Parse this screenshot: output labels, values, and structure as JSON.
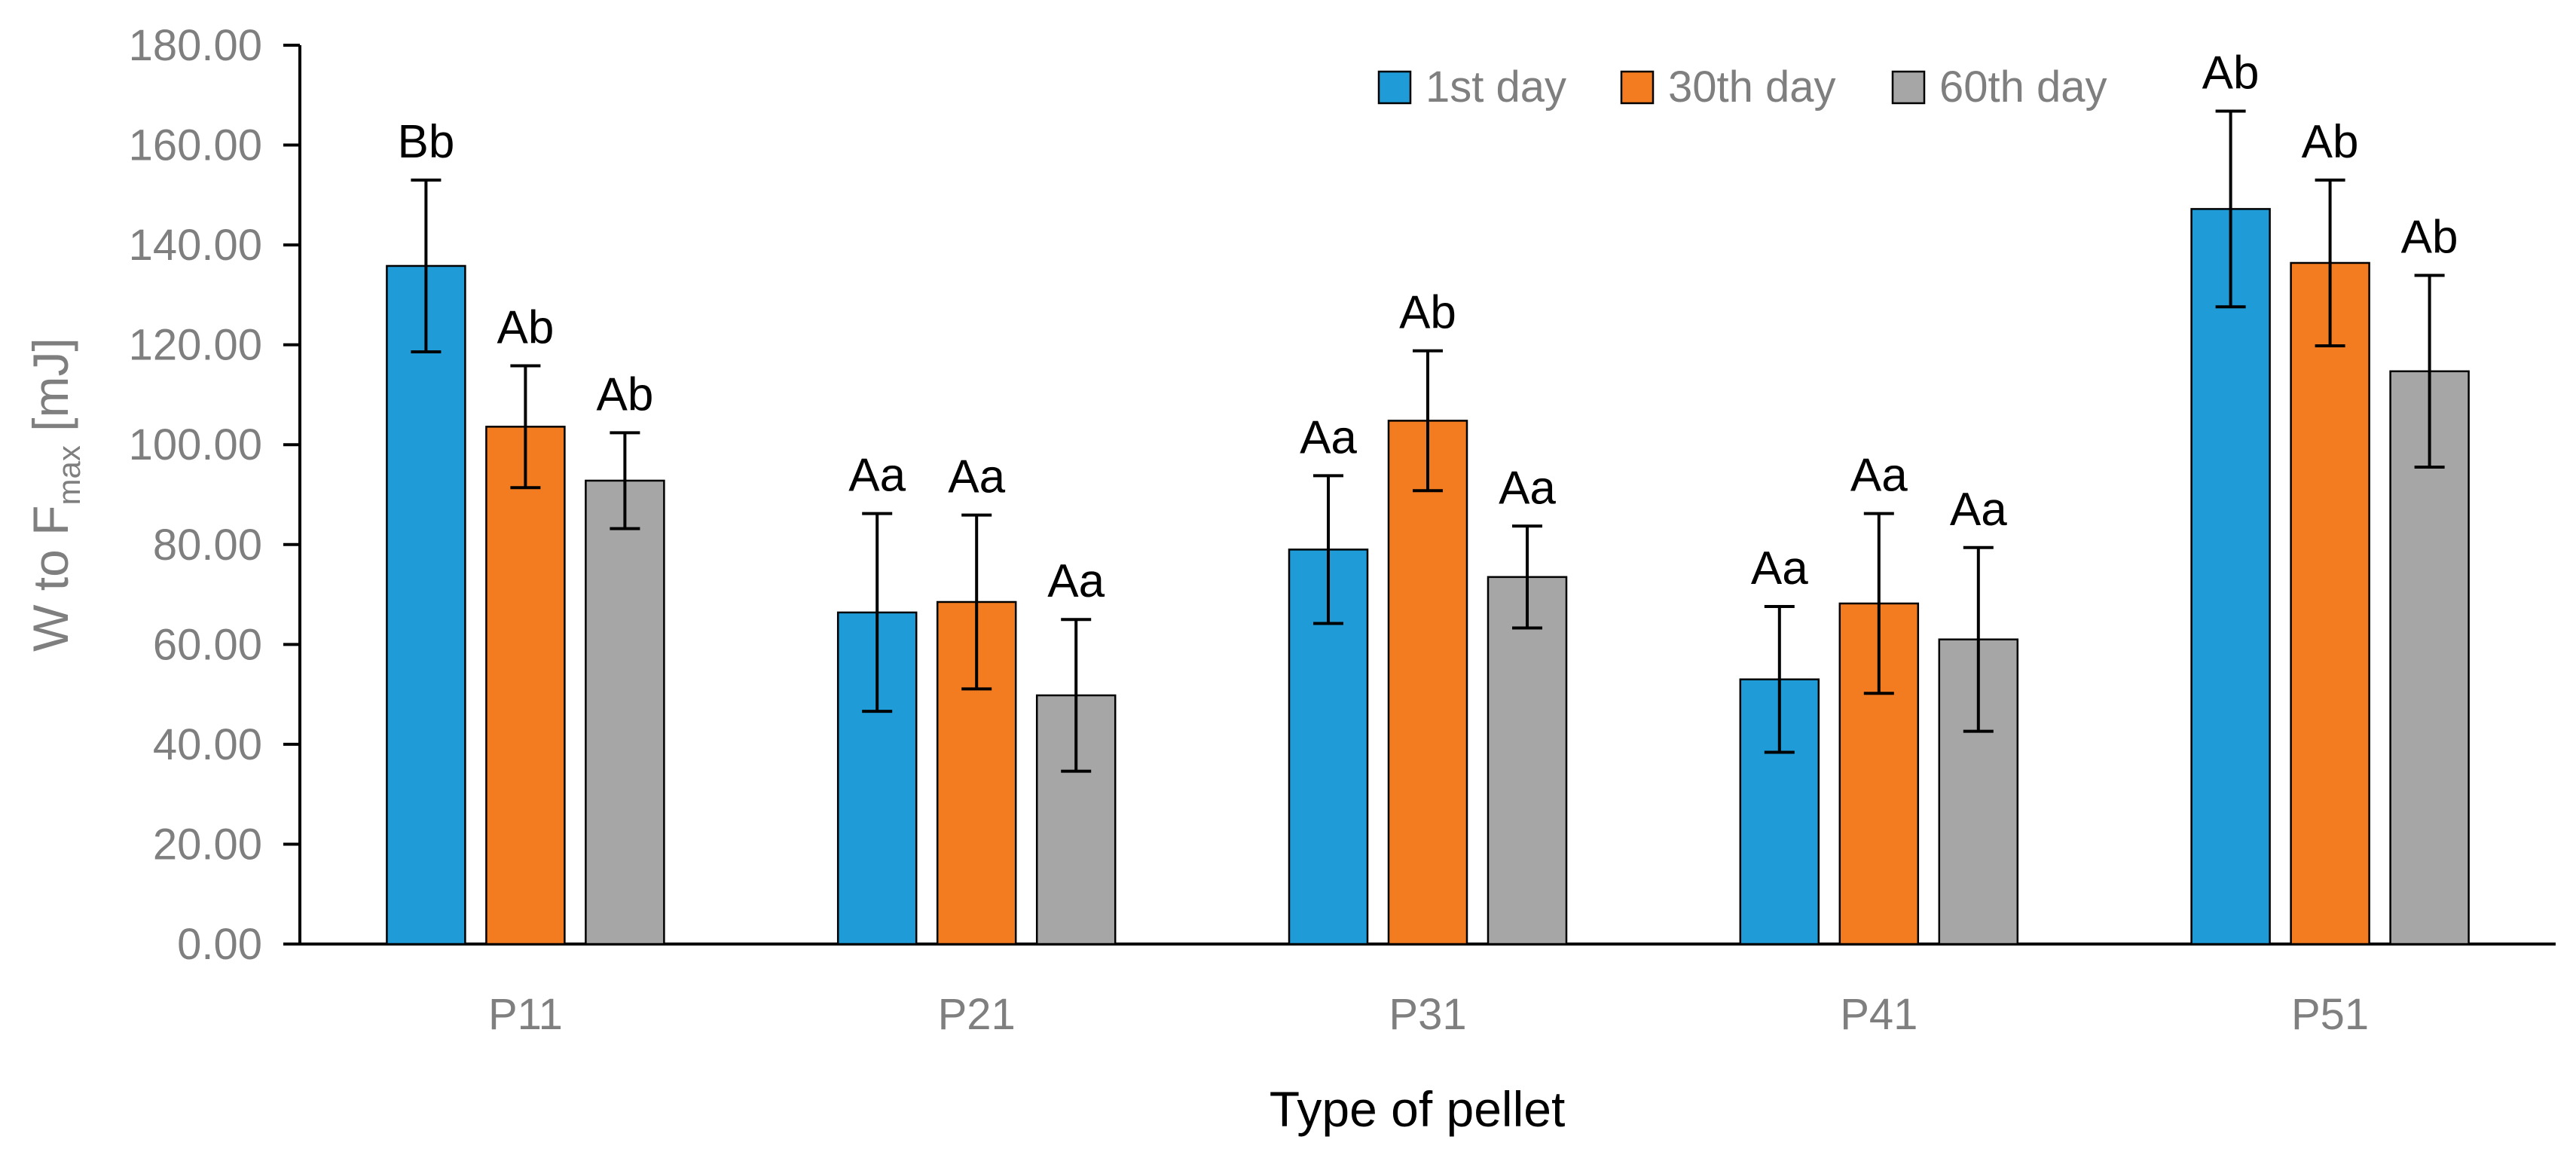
{
  "chart_data": {
    "type": "bar",
    "title": "",
    "xlabel": "Type of pellet",
    "ylabel": {
      "main": "W to F",
      "subscript": "max",
      "unit": "[mJ]"
    },
    "ylim": [
      0,
      180
    ],
    "ytick_step": 20,
    "ytick_labels": [
      "0.00",
      "20.00",
      "40.00",
      "60.00",
      "80.00",
      "100.00",
      "120.00",
      "140.00",
      "160.00",
      "180.00"
    ],
    "grid": false,
    "legend_position": "top-right",
    "categories": [
      "P11",
      "P21",
      "P31",
      "P41",
      "P51"
    ],
    "series": [
      {
        "name": "1st day",
        "color": "#1f9bd7",
        "values": [
          135.8,
          66.4,
          79.0,
          53.0,
          147.2
        ],
        "errors": [
          17.2,
          19.8,
          14.8,
          14.6,
          19.6
        ],
        "labels": [
          "Bb",
          "Aa",
          "Aa",
          "Aa",
          "Ab"
        ]
      },
      {
        "name": "30th day",
        "color": "#f47c20",
        "values": [
          103.6,
          68.5,
          104.8,
          68.2,
          136.4
        ],
        "errors": [
          12.2,
          17.4,
          14.0,
          18.0,
          16.6
        ],
        "labels": [
          "Ab",
          "Aa",
          "Ab",
          "Aa",
          "Ab"
        ]
      },
      {
        "name": "60th day",
        "color": "#a6a6a6",
        "values": [
          92.8,
          49.8,
          73.5,
          61.0,
          114.7
        ],
        "errors": [
          9.6,
          15.2,
          10.2,
          18.4,
          19.2
        ],
        "labels": [
          "Ab",
          "Aa",
          "Aa",
          "Aa",
          "Ab"
        ]
      }
    ]
  }
}
